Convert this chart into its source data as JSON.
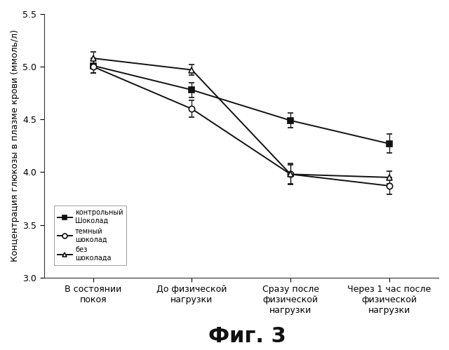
{
  "x_positions": [
    0,
    1,
    2,
    3
  ],
  "x_labels": [
    "В состоянии\nпокоя",
    "До физической\nнагрузки",
    "Сразу после\nфизической\nнагрузки",
    "Через 1 час после\nфизической\nнагрузки"
  ],
  "series": [
    {
      "label": "контрольный\nШоколад",
      "values": [
        5.01,
        4.78,
        4.49,
        4.27
      ],
      "yerr": [
        0.07,
        0.07,
        0.07,
        0.09
      ],
      "color": "#111111",
      "marker": "s",
      "markersize": 6,
      "linewidth": 1.4,
      "fillstyle": "full"
    },
    {
      "label": "темный\nшоколад",
      "values": [
        5.0,
        4.6,
        3.98,
        3.87
      ],
      "yerr": [
        0.06,
        0.08,
        0.1,
        0.08
      ],
      "color": "#111111",
      "marker": "o",
      "markersize": 6,
      "linewidth": 1.4,
      "fillstyle": "none"
    },
    {
      "label": "без\nшоколада",
      "values": [
        5.08,
        4.97,
        3.98,
        3.95
      ],
      "yerr": [
        0.06,
        0.05,
        0.09,
        0.06
      ],
      "color": "#111111",
      "marker": "^",
      "markersize": 6,
      "linewidth": 1.4,
      "fillstyle": "none"
    }
  ],
  "ylabel": "Концентрация глюкозы в плазме крови (ммоль/л)",
  "ylim": [
    3.0,
    5.5
  ],
  "yticks": [
    3.0,
    3.5,
    4.0,
    4.5,
    5.0,
    5.5
  ],
  "figure_label": "Фиг. 3",
  "background_color": "#ffffff",
  "title_fontsize": 22,
  "axis_fontsize": 9,
  "tick_fontsize": 9,
  "legend_fontsize": 7
}
